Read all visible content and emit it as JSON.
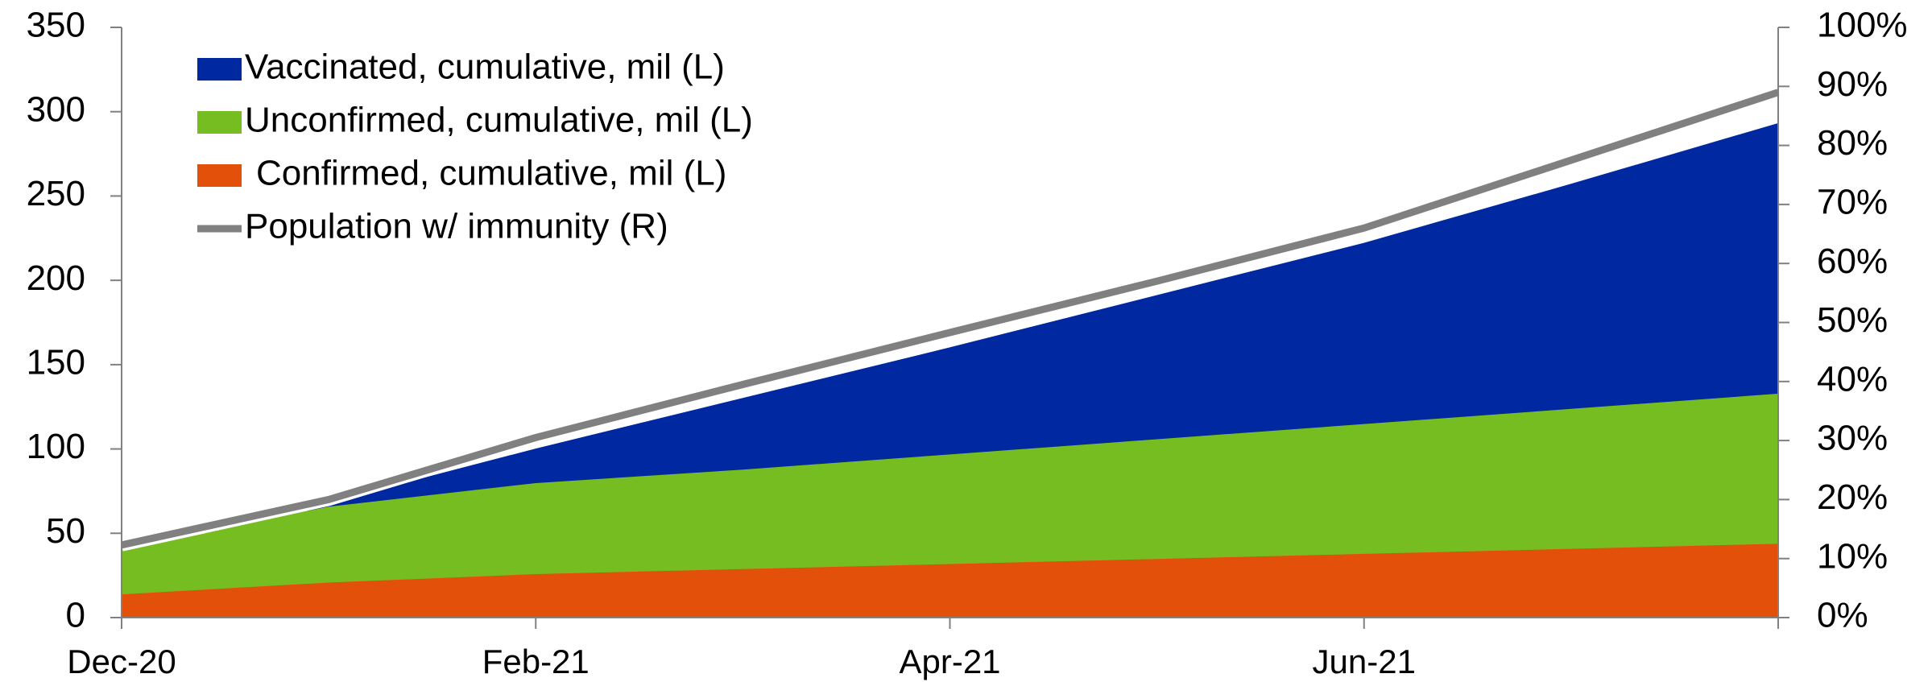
{
  "chart_data": {
    "type": "stacked_area",
    "categories": [
      "Dec-20",
      null,
      "Feb-21",
      null,
      "Apr-21",
      null,
      "Jun-21",
      null,
      null
    ],
    "series": [
      {
        "name": "Confirmed, cumulative, mil (L)",
        "color": "#e2500a",
        "values": [
          14,
          21,
          26,
          29,
          32,
          35,
          38,
          41,
          44
        ]
      },
      {
        "name": "Unconfirmed, cumulative, mil (L)",
        "color": "#76bd22",
        "values": [
          28,
          45,
          54,
          59,
          65,
          71,
          77,
          83,
          89
        ]
      },
      {
        "name": "Vaccinated, cumulative, mil (L)",
        "color": "#0028a0",
        "values": [
          0,
          2,
          20,
          42,
          63,
          85,
          107,
          133,
          160
        ]
      },
      {
        "name": "Population w/ immunity (R)",
        "color": "#808080",
        "axis": "y2",
        "values": [
          12.3,
          20,
          30.5,
          39.5,
          48.3,
          57,
          66,
          77.5,
          89
        ]
      }
    ],
    "ylim": [
      0,
      350
    ],
    "yticks": [
      0,
      50,
      100,
      150,
      200,
      250,
      300,
      350
    ],
    "y2lim": [
      0,
      100
    ],
    "y2ticks": [
      {
        "value": 0,
        "label": "0%"
      },
      {
        "value": 10,
        "label": "10%"
      },
      {
        "value": 20,
        "label": "20%"
      },
      {
        "value": 30,
        "label": "30%"
      },
      {
        "value": 40,
        "label": "40%"
      },
      {
        "value": 50,
        "label": "50%"
      },
      {
        "value": 60,
        "label": "60%"
      },
      {
        "value": 70,
        "label": "70%"
      },
      {
        "value": 80,
        "label": "80%"
      },
      {
        "value": 90,
        "label": "90%"
      },
      {
        "value": 100,
        "label": "100%"
      }
    ],
    "grid": false
  }
}
